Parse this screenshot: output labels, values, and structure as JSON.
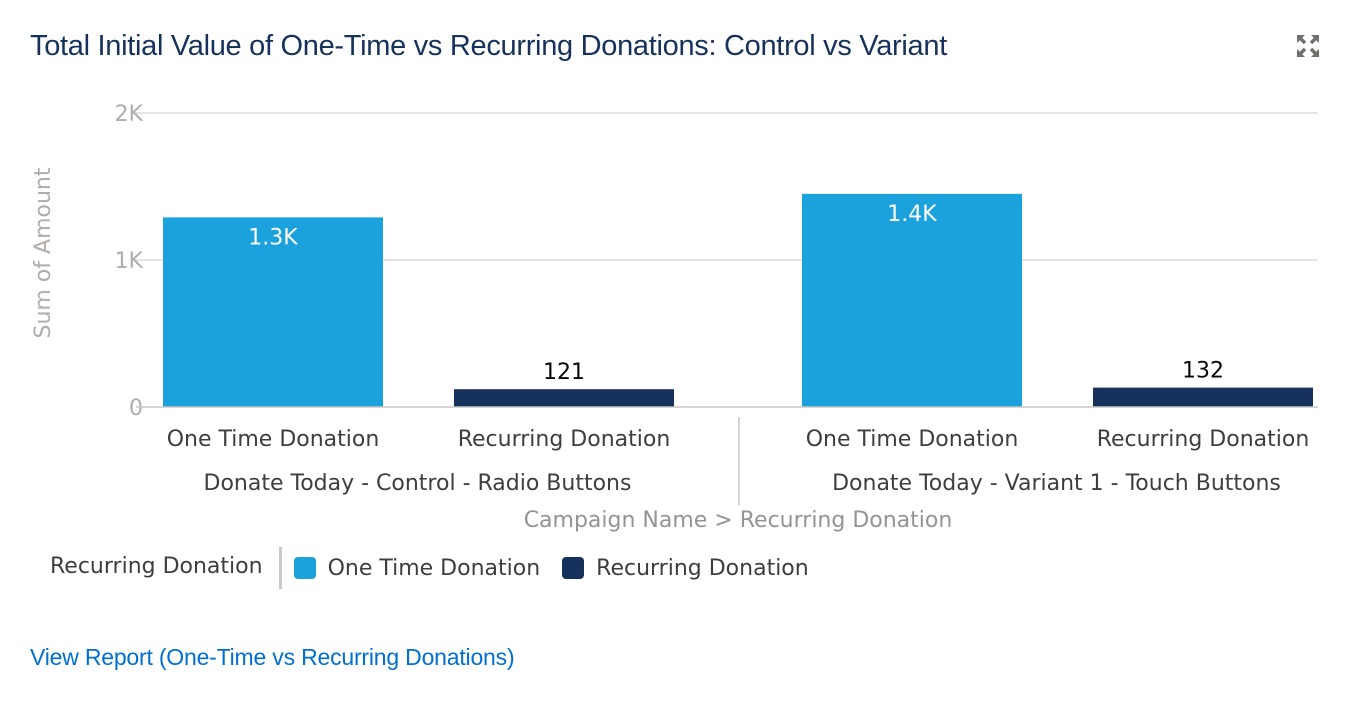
{
  "card": {
    "title": "Total Initial Value of One-Time vs Recurring Donations: Control vs Variant",
    "expand_icon": "expand-icon",
    "view_report_label": "View Report (One-Time vs Recurring Donations)"
  },
  "colors": {
    "one_time": "#1ba2dd",
    "recurring": "#16325c",
    "title": "#16325c",
    "link": "#0070d2",
    "axis_text": "#b0adab",
    "gridline": "#dddbda"
  },
  "legend": {
    "title": "Recurring Donation",
    "items": [
      {
        "label": "One Time Donation",
        "color": "#1ba2dd"
      },
      {
        "label": "Recurring Donation",
        "color": "#16325c"
      }
    ]
  },
  "chart_data": {
    "type": "bar",
    "title": "Total Initial Value of One-Time vs Recurring Donations: Control vs Variant",
    "ylabel": "Sum of Amount",
    "xlabel": "Campaign Name > Recurring Donation",
    "ylim": [
      0,
      2000
    ],
    "yticks": [
      {
        "value": 0,
        "label": "0"
      },
      {
        "value": 1000,
        "label": "1Κ"
      },
      {
        "value": 2000,
        "label": "2Κ"
      }
    ],
    "grid": true,
    "legend_position": "bottom-left",
    "groups": [
      {
        "name": "Donate Today - Control - Radio Buttons",
        "bars": [
          {
            "category": "One Time Donation",
            "value": 1290,
            "label": "1.3Κ",
            "series": "One Time Donation"
          },
          {
            "category": "Recurring Donation",
            "value": 121,
            "label": "121",
            "series": "Recurring Donation"
          }
        ]
      },
      {
        "name": "Donate Today - Variant 1 - Touch Buttons",
        "bars": [
          {
            "category": "One Time Donation",
            "value": 1450,
            "label": "1.4Κ",
            "series": "One Time Donation"
          },
          {
            "category": "Recurring Donation",
            "value": 132,
            "label": "132",
            "series": "Recurring Donation"
          }
        ]
      }
    ]
  }
}
